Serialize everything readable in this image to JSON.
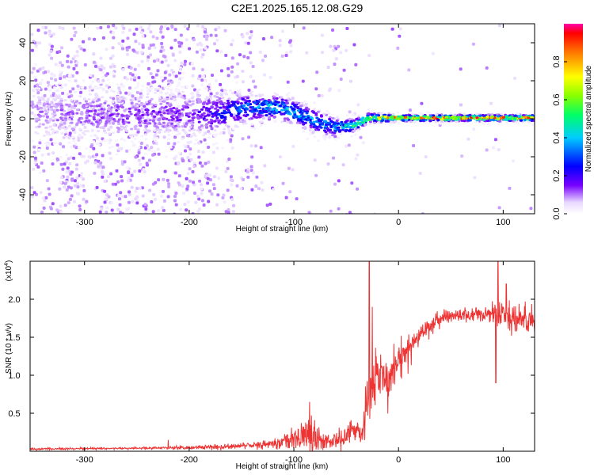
{
  "title": "C2E1.2025.165.12.08.G29",
  "chart_data": [
    {
      "type": "heatmap",
      "xlabel": "Height of straight line (km)",
      "ylabel": "Frequency (Hz)",
      "xlim": [
        -352,
        130
      ],
      "ylim": [
        -50,
        50
      ],
      "xticks": [
        -300,
        -200,
        -100,
        0,
        100
      ],
      "yticks": [
        -40,
        -20,
        0,
        20,
        40
      ],
      "colorbar": {
        "label": "Normalized spectral amplitude",
        "range": [
          0,
          1
        ],
        "ticks": [
          "0.0",
          "0.2",
          "0.4",
          "0.6",
          "0.8"
        ]
      },
      "ridge": [
        {
          "x": -350,
          "y": 3,
          "spread": 9,
          "amp": 0.1
        },
        {
          "x": -300,
          "y": 3,
          "spread": 9,
          "amp": 0.12
        },
        {
          "x": -250,
          "y": 3,
          "spread": 8,
          "amp": 0.14
        },
        {
          "x": -200,
          "y": 3,
          "spread": 8,
          "amp": 0.16
        },
        {
          "x": -170,
          "y": 4,
          "spread": 6,
          "amp": 0.25
        },
        {
          "x": -150,
          "y": 6,
          "spread": 5,
          "amp": 0.33
        },
        {
          "x": -120,
          "y": 7,
          "spread": 4,
          "amp": 0.4
        },
        {
          "x": -100,
          "y": 4,
          "spread": 4,
          "amp": 0.38
        },
        {
          "x": -80,
          "y": -1,
          "spread": 4,
          "amp": 0.36
        },
        {
          "x": -60,
          "y": -4,
          "spread": 3,
          "amp": 0.38
        },
        {
          "x": -45,
          "y": -3,
          "spread": 2,
          "amp": 0.5
        },
        {
          "x": -30,
          "y": 1,
          "spread": 1.5,
          "amp": 0.7
        },
        {
          "x": 0,
          "y": 1,
          "spread": 1,
          "amp": 0.8
        },
        {
          "x": 50,
          "y": 1,
          "spread": 1,
          "amp": 0.85
        },
        {
          "x": 100,
          "y": 1,
          "spread": 1,
          "amp": 0.85
        },
        {
          "x": 130,
          "y": 1,
          "spread": 1,
          "amp": 0.85
        }
      ]
    },
    {
      "type": "line",
      "xlabel": "Height of straight line (km)",
      "ylabel": "SNR (10 * v/v)",
      "multiplier": "(x10",
      "multiplier_exp": "4",
      "multiplier_close": ")",
      "xlim": [
        -352,
        130
      ],
      "ylim": [
        0,
        2.5
      ],
      "xticks": [
        -300,
        -200,
        -100,
        0,
        100
      ],
      "yticks": [
        0.5,
        1.0,
        1.5,
        2.0
      ],
      "ytick_labels": [
        "0.5",
        "1.0",
        "1.5",
        "2.0"
      ],
      "color": "#ee3333",
      "series": [
        {
          "envelope": [
            {
              "x": -352,
              "mean": 0.03,
              "noise": 0.01
            },
            {
              "x": -250,
              "mean": 0.04,
              "noise": 0.01
            },
            {
              "x": -200,
              "mean": 0.05,
              "noise": 0.02
            },
            {
              "x": -160,
              "mean": 0.06,
              "noise": 0.03
            },
            {
              "x": -120,
              "mean": 0.1,
              "noise": 0.06
            },
            {
              "x": -100,
              "mean": 0.15,
              "noise": 0.12
            },
            {
              "x": -85,
              "mean": 0.25,
              "noise": 0.3
            },
            {
              "x": -70,
              "mean": 0.12,
              "noise": 0.08
            },
            {
              "x": -55,
              "mean": 0.15,
              "noise": 0.1
            },
            {
              "x": -45,
              "mean": 0.3,
              "noise": 0.15
            },
            {
              "x": -35,
              "mean": 0.2,
              "noise": 0.12
            },
            {
              "x": -28,
              "mean": 0.7,
              "noise": 0.5
            },
            {
              "x": -20,
              "mean": 1.05,
              "noise": 0.3
            },
            {
              "x": -10,
              "mean": 1.0,
              "noise": 0.3
            },
            {
              "x": 0,
              "mean": 1.2,
              "noise": 0.25
            },
            {
              "x": 15,
              "mean": 1.45,
              "noise": 0.15
            },
            {
              "x": 30,
              "mean": 1.65,
              "noise": 0.1
            },
            {
              "x": 45,
              "mean": 1.78,
              "noise": 0.07
            },
            {
              "x": 60,
              "mean": 1.8,
              "noise": 0.08
            },
            {
              "x": 80,
              "mean": 1.8,
              "noise": 0.08
            },
            {
              "x": 95,
              "mean": 1.82,
              "noise": 0.15
            },
            {
              "x": 110,
              "mean": 1.75,
              "noise": 0.15
            },
            {
              "x": 130,
              "mean": 1.72,
              "noise": 0.15
            }
          ],
          "spikes": [
            {
              "x": -28,
              "y": 2.5
            },
            {
              "x": -25,
              "y": 1.9
            },
            {
              "x": -85,
              "y": 0.65
            },
            {
              "x": -220,
              "y": 0.15
            },
            {
              "x": 95,
              "y": 2.5
            },
            {
              "x": 93,
              "y": 0.9
            },
            {
              "x": 103,
              "y": 2.2
            }
          ]
        }
      ]
    }
  ]
}
